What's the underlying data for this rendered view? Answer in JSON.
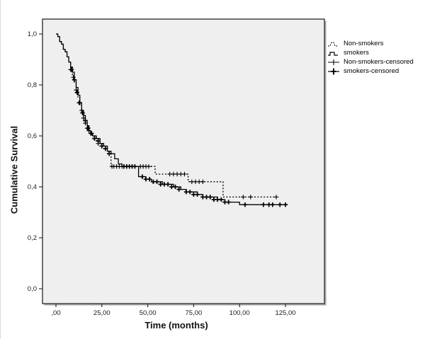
{
  "chart_data": {
    "type": "line",
    "subtype": "kaplan-meier-step",
    "title": "",
    "xlabel": "Time (months)",
    "ylabel": "Cumulative Survival",
    "xlim": [
      0,
      125
    ],
    "ylim": [
      0,
      1
    ],
    "grid": false,
    "legend_position": "top-right-outside",
    "plot_background": "#efefef",
    "border_color": "#4d4d4d",
    "line_color": "#000000",
    "x_ticks": [
      {
        "value": 0,
        "label": ",00"
      },
      {
        "value": 25,
        "label": "25,00"
      },
      {
        "value": 50,
        "label": "50,00"
      },
      {
        "value": 75,
        "label": "75,00"
      },
      {
        "value": 100,
        "label": "100,00"
      },
      {
        "value": 125,
        "label": "125,00"
      }
    ],
    "y_ticks": [
      {
        "value": 1.0,
        "label": "1,0"
      },
      {
        "value": 0.8,
        "label": "0,8"
      },
      {
        "value": 0.6,
        "label": "0,6"
      },
      {
        "value": 0.4,
        "label": "0,4"
      },
      {
        "value": 0.2,
        "label": "0,2"
      },
      {
        "value": 0.0,
        "label": "0,0"
      }
    ],
    "legend_items": [
      {
        "label": "Non-smokers",
        "symbol": "dotted-step-icon"
      },
      {
        "label": "smokers",
        "symbol": "solid-step-icon"
      },
      {
        "label": "Non-smokers-censored",
        "symbol": "plus-line-icon"
      },
      {
        "label": "smokers-censored",
        "symbol": "bold-plus-line-icon"
      }
    ],
    "series": [
      {
        "name": "Non-smokers",
        "style": "dotted",
        "color": "#000000",
        "censor_style": "thin",
        "points": [
          [
            0,
            1.0
          ],
          [
            1,
            0.99
          ],
          [
            2,
            0.97
          ],
          [
            3,
            0.96
          ],
          [
            4,
            0.94
          ],
          [
            5,
            0.93
          ],
          [
            6,
            0.91
          ],
          [
            7,
            0.89
          ],
          [
            8,
            0.86
          ],
          [
            9,
            0.84
          ],
          [
            10,
            0.81
          ],
          [
            11,
            0.78
          ],
          [
            12,
            0.75
          ],
          [
            13,
            0.72
          ],
          [
            14,
            0.7
          ],
          [
            15,
            0.67
          ],
          [
            16,
            0.65
          ],
          [
            17,
            0.63
          ],
          [
            18,
            0.62
          ],
          [
            19,
            0.61
          ],
          [
            20,
            0.6
          ],
          [
            22,
            0.58
          ],
          [
            24,
            0.57
          ],
          [
            26,
            0.55
          ],
          [
            28,
            0.54
          ],
          [
            30,
            0.48
          ],
          [
            54,
            0.45
          ],
          [
            72,
            0.42
          ],
          [
            91,
            0.36
          ],
          [
            120,
            0.36
          ]
        ],
        "censored": [
          [
            8,
            0.86
          ],
          [
            9.5,
            0.83
          ],
          [
            11,
            0.78
          ],
          [
            12.5,
            0.73
          ],
          [
            14,
            0.7
          ],
          [
            15,
            0.67
          ],
          [
            16,
            0.65
          ],
          [
            17,
            0.63
          ],
          [
            18,
            0.62
          ],
          [
            19.5,
            0.61
          ],
          [
            21,
            0.59
          ],
          [
            23,
            0.57
          ],
          [
            25,
            0.56
          ],
          [
            27,
            0.55
          ],
          [
            30.5,
            0.48
          ],
          [
            31.5,
            0.48
          ],
          [
            33,
            0.48
          ],
          [
            34.5,
            0.48
          ],
          [
            36,
            0.48
          ],
          [
            46,
            0.48
          ],
          [
            47.5,
            0.48
          ],
          [
            49,
            0.48
          ],
          [
            50.5,
            0.48
          ],
          [
            62,
            0.45
          ],
          [
            64,
            0.45
          ],
          [
            66,
            0.45
          ],
          [
            68,
            0.45
          ],
          [
            70,
            0.45
          ],
          [
            74,
            0.42
          ],
          [
            76,
            0.42
          ],
          [
            78,
            0.42
          ],
          [
            80,
            0.42
          ],
          [
            102,
            0.36
          ],
          [
            106,
            0.36
          ],
          [
            120,
            0.36
          ]
        ]
      },
      {
        "name": "smokers",
        "style": "solid",
        "color": "#000000",
        "censor_style": "bold",
        "points": [
          [
            0,
            1.0
          ],
          [
            1,
            0.99
          ],
          [
            2,
            0.97
          ],
          [
            3,
            0.96
          ],
          [
            4,
            0.94
          ],
          [
            5,
            0.93
          ],
          [
            6,
            0.91
          ],
          [
            7,
            0.89
          ],
          [
            8,
            0.87
          ],
          [
            9,
            0.85
          ],
          [
            10,
            0.82
          ],
          [
            11,
            0.79
          ],
          [
            12,
            0.76
          ],
          [
            13,
            0.73
          ],
          [
            14,
            0.7
          ],
          [
            15,
            0.68
          ],
          [
            16,
            0.66
          ],
          [
            17,
            0.64
          ],
          [
            18,
            0.62
          ],
          [
            19,
            0.61
          ],
          [
            20,
            0.6
          ],
          [
            22,
            0.59
          ],
          [
            24,
            0.57
          ],
          [
            26,
            0.56
          ],
          [
            28,
            0.54
          ],
          [
            30,
            0.53
          ],
          [
            32,
            0.51
          ],
          [
            34,
            0.49
          ],
          [
            36,
            0.48
          ],
          [
            45,
            0.44
          ],
          [
            47,
            0.44
          ],
          [
            49,
            0.43
          ],
          [
            52,
            0.42
          ],
          [
            55,
            0.42
          ],
          [
            58,
            0.41
          ],
          [
            61,
            0.41
          ],
          [
            64,
            0.4
          ],
          [
            68,
            0.39
          ],
          [
            71,
            0.38
          ],
          [
            74,
            0.38
          ],
          [
            77,
            0.37
          ],
          [
            80,
            0.36
          ],
          [
            84,
            0.36
          ],
          [
            88,
            0.35
          ],
          [
            92,
            0.34
          ],
          [
            96,
            0.34
          ],
          [
            100,
            0.33
          ],
          [
            125,
            0.33
          ]
        ],
        "censored": [
          [
            8.5,
            0.86
          ],
          [
            10,
            0.82
          ],
          [
            11.5,
            0.77
          ],
          [
            13,
            0.73
          ],
          [
            14.5,
            0.69
          ],
          [
            16,
            0.66
          ],
          [
            17.5,
            0.63
          ],
          [
            19,
            0.61
          ],
          [
            21,
            0.59
          ],
          [
            23,
            0.58
          ],
          [
            25,
            0.56
          ],
          [
            27,
            0.55
          ],
          [
            29,
            0.53
          ],
          [
            37,
            0.48
          ],
          [
            38.5,
            0.48
          ],
          [
            40,
            0.48
          ],
          [
            41.5,
            0.48
          ],
          [
            43,
            0.48
          ],
          [
            47,
            0.44
          ],
          [
            49,
            0.43
          ],
          [
            51,
            0.43
          ],
          [
            53,
            0.42
          ],
          [
            55,
            0.42
          ],
          [
            57,
            0.41
          ],
          [
            59,
            0.41
          ],
          [
            61,
            0.41
          ],
          [
            63,
            0.4
          ],
          [
            65,
            0.4
          ],
          [
            67,
            0.39
          ],
          [
            71,
            0.38
          ],
          [
            73,
            0.38
          ],
          [
            75,
            0.37
          ],
          [
            77,
            0.37
          ],
          [
            80,
            0.36
          ],
          [
            82,
            0.36
          ],
          [
            84,
            0.36
          ],
          [
            86,
            0.35
          ],
          [
            88,
            0.35
          ],
          [
            90,
            0.35
          ],
          [
            92,
            0.34
          ],
          [
            94,
            0.34
          ],
          [
            103,
            0.33
          ],
          [
            113,
            0.33
          ],
          [
            116,
            0.33
          ],
          [
            118,
            0.33
          ],
          [
            122,
            0.33
          ],
          [
            125,
            0.33
          ]
        ]
      }
    ]
  }
}
